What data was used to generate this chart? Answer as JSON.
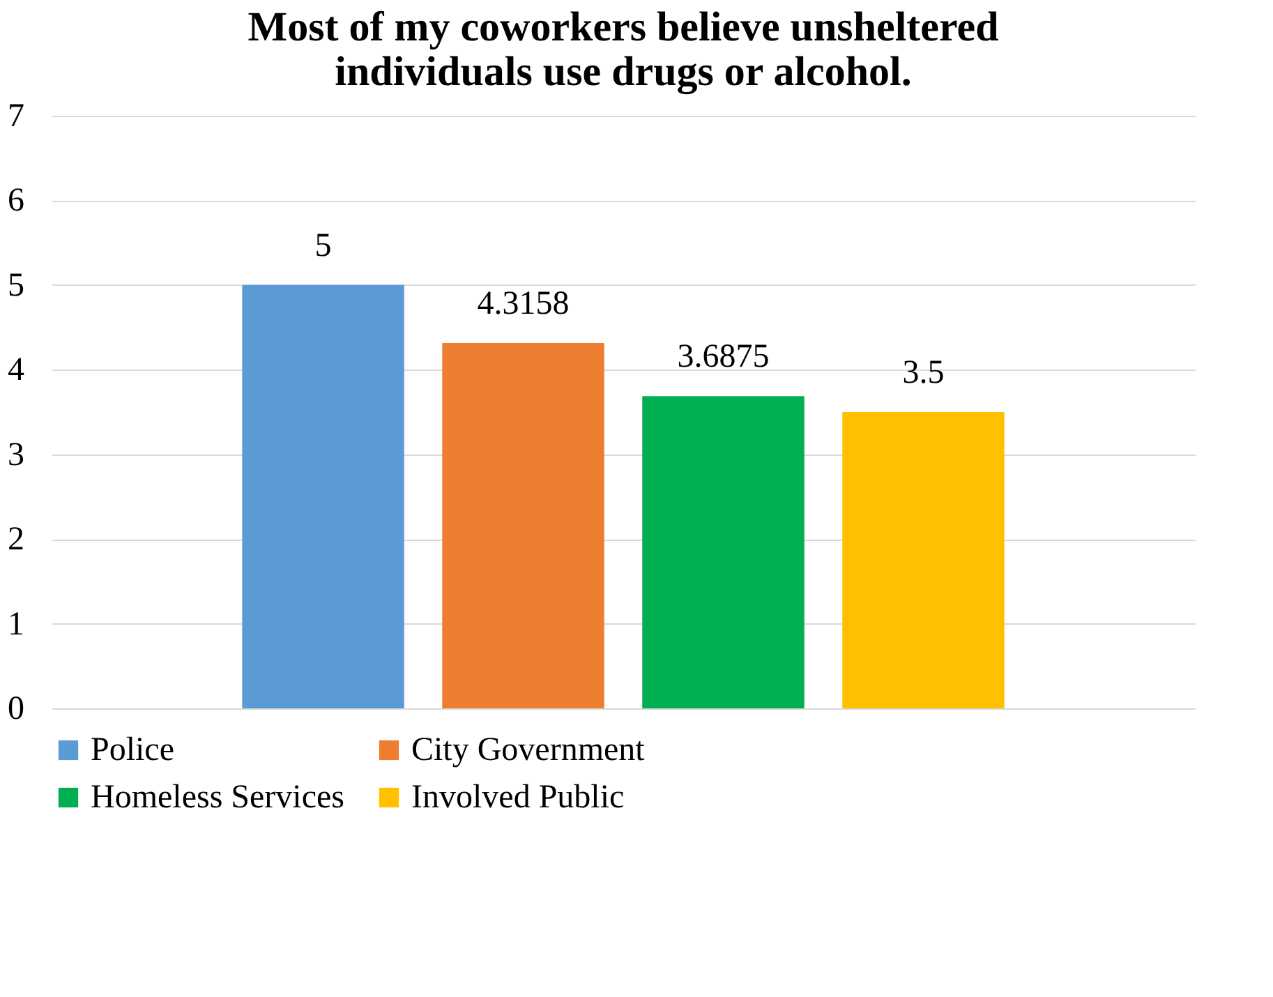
{
  "chart_data": {
    "type": "bar",
    "title": "Most of my coworkers believe unsheltered individuals use drugs or alcohol.",
    "categories": [
      null
    ],
    "series": [
      {
        "name": "Police",
        "color": "#5b9bd5",
        "values": [
          5
        ]
      },
      {
        "name": "City Government",
        "color": "#ed7d31",
        "values": [
          4.3158
        ]
      },
      {
        "name": "Homeless Services",
        "color": "#00b050",
        "values": [
          3.6875
        ]
      },
      {
        "name": "Involved Public",
        "color": "#ffc000",
        "values": [
          3.5
        ]
      }
    ],
    "ylim": [
      0,
      7
    ],
    "yticks": [
      0,
      1,
      2,
      3,
      4,
      5,
      6,
      7
    ],
    "grid": "y",
    "legend": "bottom",
    "data_labels": true
  }
}
